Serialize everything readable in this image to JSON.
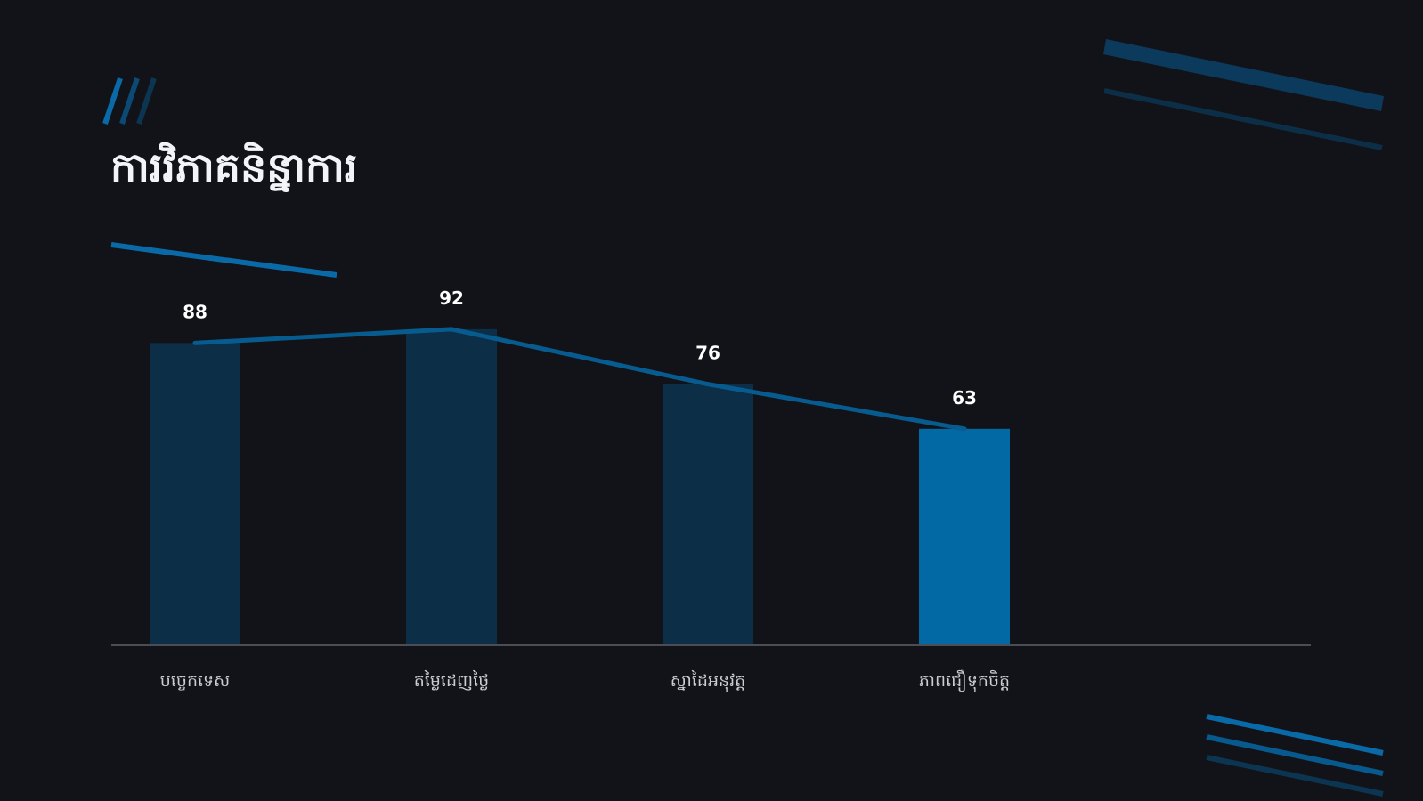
{
  "slide": {
    "title": "ការវិភាគនិន្នាការ"
  },
  "colors": {
    "background": "#111318",
    "bar": "#0c2e47",
    "bar_highlight": "#0369a5",
    "trend_line": "#075b8f",
    "baseline": "#4a4d54",
    "accent": "#0a6aa8",
    "value_text": "#ffffff",
    "category_text": "#c9ccd2"
  },
  "chart_data": {
    "type": "bar",
    "categories": [
      "បច្ចេកទេស",
      "តម្លៃដេញថ្លៃ",
      "ស្នាដៃអនុវត្ត",
      "ភាពជឿទុកចិត្ត"
    ],
    "values": [
      88,
      92,
      76,
      63
    ],
    "highlight_index": 3,
    "overlay": "line",
    "ylim": [
      0,
      100
    ],
    "grid": false,
    "legend": "none"
  }
}
